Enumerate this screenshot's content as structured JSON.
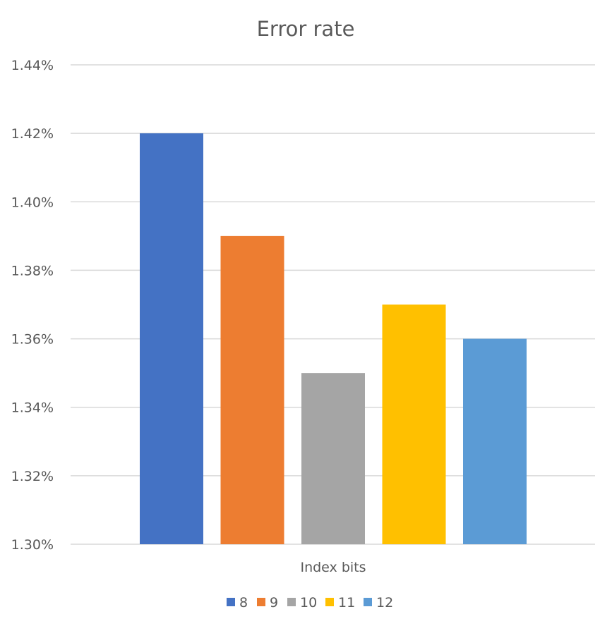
{
  "chart_data": {
    "type": "bar",
    "title": "Error rate",
    "xlabel": "Index bits",
    "ylabel": "",
    "categories": [
      "Index bits"
    ],
    "ylim": [
      0.013,
      0.0144
    ],
    "yticks": [
      0.013,
      0.0132,
      0.0134,
      0.0136,
      0.0138,
      0.014,
      0.0142,
      0.0144
    ],
    "ytick_labels": [
      "1.30%",
      "1.32%",
      "1.34%",
      "1.36%",
      "1.38%",
      "1.40%",
      "1.42%",
      "1.44%"
    ],
    "grid": true,
    "legend_position": "bottom",
    "series": [
      {
        "name": "8",
        "values": [
          0.0142
        ],
        "color": "#4472C4"
      },
      {
        "name": "9",
        "values": [
          0.0139
        ],
        "color": "#ED7D31"
      },
      {
        "name": "10",
        "values": [
          0.0135
        ],
        "color": "#A5A5A5"
      },
      {
        "name": "11",
        "values": [
          0.0137
        ],
        "color": "#FFC000"
      },
      {
        "name": "12",
        "values": [
          0.0136
        ],
        "color": "#5B9BD5"
      }
    ]
  }
}
